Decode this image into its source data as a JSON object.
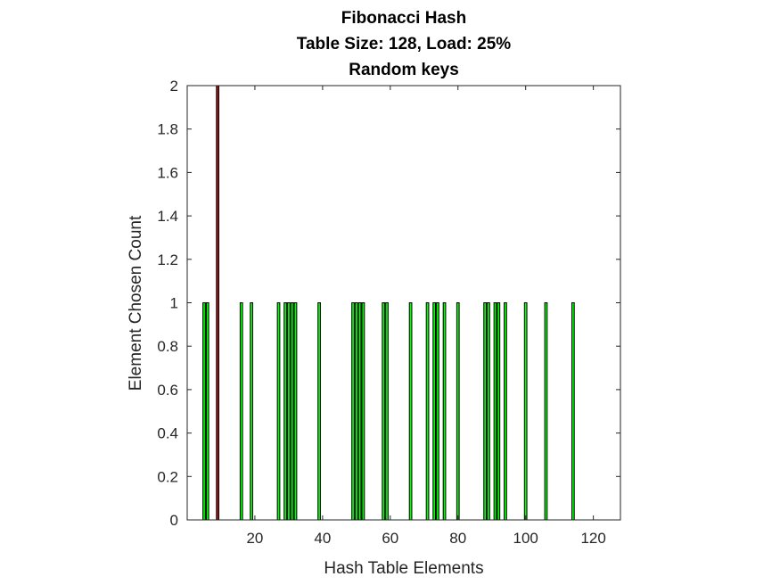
{
  "chart_data": {
    "type": "bar",
    "title": [
      "Fibonacci Hash",
      "Table Size: 128, Load: 25%",
      "Random keys"
    ],
    "xlabel": "Hash Table Elements",
    "ylabel": "Element Chosen Count",
    "xlim": [
      0,
      128
    ],
    "ylim": [
      0,
      2
    ],
    "xticks": [
      20,
      40,
      60,
      80,
      100,
      120
    ],
    "yticks": [
      0,
      0.2,
      0.4,
      0.6,
      0.8,
      1,
      1.2,
      1.4,
      1.6,
      1.8,
      2
    ],
    "grid": false,
    "legend": "none",
    "x": [
      1,
      2,
      3,
      4,
      5,
      6,
      7,
      8,
      9,
      10,
      11,
      12,
      13,
      14,
      15,
      16,
      17,
      18,
      19,
      20,
      21,
      22,
      23,
      24,
      25,
      26,
      27,
      28,
      29,
      30,
      31,
      32,
      33,
      34,
      35,
      36,
      37,
      38,
      39,
      40,
      41,
      42,
      43,
      44,
      45,
      46,
      47,
      48,
      49,
      50,
      51,
      52,
      53,
      54,
      55,
      56,
      57,
      58,
      59,
      60,
      61,
      62,
      63,
      64,
      65,
      66,
      67,
      68,
      69,
      70,
      71,
      72,
      73,
      74,
      75,
      76,
      77,
      78,
      79,
      80,
      81,
      82,
      83,
      84,
      85,
      86,
      87,
      88,
      89,
      90,
      91,
      92,
      93,
      94,
      95,
      96,
      97,
      98,
      99,
      100,
      101,
      102,
      103,
      104,
      105,
      106,
      107,
      108,
      109,
      110,
      111,
      112,
      113,
      114,
      115,
      116,
      117,
      118,
      119,
      120,
      121,
      122,
      123,
      124,
      125,
      126,
      127,
      128
    ],
    "values": [
      0,
      0,
      0,
      0,
      1,
      1,
      0,
      0,
      2,
      0,
      0,
      0,
      0,
      0,
      0,
      1,
      0,
      0,
      1,
      0,
      0,
      0,
      0,
      0,
      0,
      0,
      1,
      0,
      1,
      1,
      1,
      1,
      0,
      0,
      0,
      0,
      0,
      0,
      1,
      0,
      0,
      0,
      0,
      0,
      0,
      0,
      0,
      0,
      1,
      1,
      1,
      1,
      0,
      0,
      0,
      0,
      0,
      1,
      1,
      0,
      0,
      0,
      0,
      0,
      0,
      1,
      0,
      0,
      0,
      0,
      1,
      0,
      1,
      1,
      0,
      1,
      0,
      0,
      0,
      1,
      0,
      0,
      0,
      0,
      0,
      0,
      0,
      1,
      1,
      0,
      1,
      1,
      0,
      1,
      0,
      0,
      0,
      0,
      0,
      1,
      0,
      0,
      0,
      0,
      0,
      1,
      0,
      0,
      0,
      0,
      0,
      0,
      0,
      1,
      0,
      0,
      0,
      0,
      0,
      0,
      0,
      0,
      0,
      0,
      0,
      0,
      0,
      0
    ],
    "colors": {
      "normal": "#00ff00",
      "collision": "#a31515",
      "edge": "#000000",
      "axis": "#262626"
    }
  }
}
